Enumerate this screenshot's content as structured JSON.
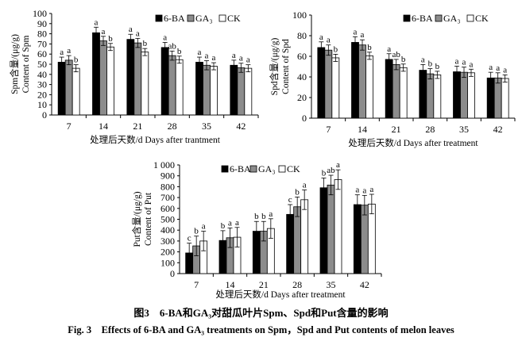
{
  "caption": {
    "cn": "图3　6-BA和GA₃对甜瓜叶片Spm、Spd和Put含量的影响",
    "en": "Fig. 3　Effects of 6-BA and GA₃ treatments on Spm，Spd and Put contents of melon leaves"
  },
  "colors": {
    "6-BA": "#000000",
    "GA3": "#8c8c8c",
    "CK": "#ffffff"
  },
  "chart_data": [
    {
      "type": "bar",
      "title": "",
      "ylabel_cn": "Spm含量/(μg/g)",
      "ylabel_en": "Content of Spm",
      "xlabel": "处理后天数/d Days after trantment",
      "categories": [
        "7",
        "14",
        "21",
        "28",
        "35",
        "42"
      ],
      "ylim": [
        0,
        100
      ],
      "ytick_step": 10,
      "yticks": [
        "0",
        "10",
        "20",
        "30",
        "40",
        "50",
        "60",
        "70",
        "80",
        "90",
        "100"
      ],
      "legend": "top-right",
      "series": [
        {
          "name": "6-BA",
          "values": [
            52,
            81,
            74.5,
            66.5,
            52,
            49
          ],
          "errors": [
            5,
            5.5,
            5,
            5,
            5,
            5
          ],
          "letters": [
            "a",
            "a",
            "a",
            "a",
            "a",
            "a"
          ]
        },
        {
          "name": "GA₃",
          "values": [
            54,
            73,
            71,
            58.5,
            49,
            46.5
          ],
          "errors": [
            4.5,
            4.5,
            4.5,
            4.5,
            4.5,
            4.5
          ],
          "letters": [
            "a",
            "a",
            "a",
            "ab",
            "a",
            "a"
          ]
        },
        {
          "name": "CK",
          "values": [
            46,
            67,
            62,
            54.5,
            48,
            46
          ],
          "errors": [
            3.5,
            3.5,
            3.5,
            3.5,
            3.5,
            3.5
          ],
          "letters": [
            "b",
            "b",
            "b",
            "b",
            "a",
            "a"
          ]
        }
      ]
    },
    {
      "type": "bar",
      "title": "",
      "ylabel_cn": "Spd含量/(μg/g)",
      "ylabel_en": "Content of Spd",
      "xlabel": "处理后天数/d Days after treatment",
      "categories": [
        "7",
        "14",
        "21",
        "28",
        "35",
        "42"
      ],
      "ylim": [
        0,
        100
      ],
      "ytick_step": 20,
      "yticks": [
        "0",
        "20",
        "40",
        "60",
        "80",
        "100"
      ],
      "legend": "top-right",
      "series": [
        {
          "name": "6-BA",
          "values": [
            68.5,
            73.5,
            57,
            46.5,
            45,
            39
          ],
          "errors": [
            5.5,
            5.5,
            5.5,
            5.5,
            5.5,
            5.5
          ],
          "letters": [
            "a",
            "a",
            "a",
            "a",
            "a",
            "a"
          ]
        },
        {
          "name": "GA₃",
          "values": [
            66,
            71,
            52,
            43,
            44.5,
            39
          ],
          "errors": [
            5,
            5,
            5,
            5,
            5,
            5
          ],
          "letters": [
            "a",
            "a",
            "ab",
            "b",
            "a",
            "a"
          ]
        },
        {
          "name": "CK",
          "values": [
            58.5,
            60.5,
            49,
            42,
            44,
            38.5
          ],
          "errors": [
            3.5,
            3.5,
            3.5,
            3.5,
            3.5,
            3.5
          ],
          "letters": [
            "b",
            "b",
            "b",
            "b",
            "a",
            "a"
          ]
        }
      ]
    },
    {
      "type": "bar",
      "title": "",
      "ylabel_cn": "Put含量/(μg/g)",
      "ylabel_en": "Content of Put",
      "xlabel": "处理后天数/d Days after treatment",
      "categories": [
        "7",
        "14",
        "21",
        "28",
        "35",
        "42"
      ],
      "ylim": [
        0,
        1000
      ],
      "ytick_step": 100,
      "yticks": [
        "0",
        "100",
        "200",
        "300",
        "400",
        "500",
        "600",
        "700",
        "800",
        "900",
        "1 000"
      ],
      "legend": "top-center",
      "series": [
        {
          "name": "6-BA",
          "values": [
            190,
            305,
            390,
            545,
            790,
            635
          ],
          "errors": [
            90,
            90,
            90,
            90,
            90,
            90
          ],
          "letters": [
            "c",
            "b",
            "b",
            "c",
            "b",
            "a"
          ]
        },
        {
          "name": "GA₃",
          "values": [
            255,
            330,
            390,
            615,
            815,
            630
          ],
          "errors": [
            90,
            90,
            90,
            90,
            90,
            90
          ],
          "letters": [
            "b",
            "a",
            "b",
            "b",
            "ab",
            "a"
          ]
        },
        {
          "name": "CK",
          "values": [
            300,
            335,
            415,
            680,
            865,
            640
          ],
          "errors": [
            90,
            90,
            90,
            90,
            90,
            90
          ],
          "letters": [
            "a",
            "a",
            "a",
            "a",
            "a",
            "a"
          ]
        }
      ]
    }
  ]
}
